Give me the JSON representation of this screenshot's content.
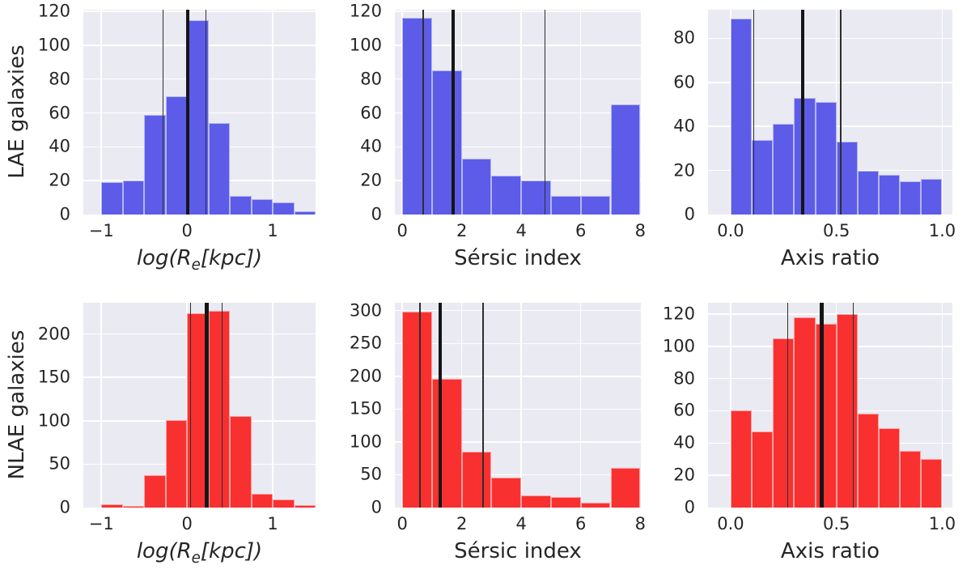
{
  "figure": {
    "background": "#ffffff"
  },
  "style": {
    "plot_bg": "#EAEAF2",
    "grid_color": "#FFFFFF",
    "text_color": "#262626",
    "thin_line_color": "#2e2e2e",
    "thick_line_color": "#151515",
    "bar_edge": "rgba(255,255,255,0.55)",
    "lae_color": "#5C5CE8",
    "nlae_color": "#F93030"
  },
  "chart_data": [
    {
      "type": "bar",
      "series": "LAE galaxies",
      "row_label": "LAE galaxies",
      "xlabel_text": "log(Re[kpc])",
      "xlabel_parts": [
        {
          "text": "log(R",
          "italic": true
        },
        {
          "text": "e",
          "italic": true,
          "sub": true
        },
        {
          "text": "[kpc])",
          "italic": true
        }
      ],
      "color": "#5C5CE8",
      "bin_start": -1,
      "bin_width": 0.25,
      "values": [
        19,
        20,
        59,
        70,
        115,
        54,
        11,
        9,
        7,
        2
      ],
      "xlim": [
        -1.21,
        1.5
      ],
      "ylim": [
        0,
        121
      ],
      "xticks": [
        {
          "v": -1,
          "label": "−1"
        },
        {
          "v": 0,
          "label": "0"
        },
        {
          "v": 1,
          "label": "1"
        }
      ],
      "yticks": [
        {
          "v": 0,
          "label": "0"
        },
        {
          "v": 20,
          "label": "20"
        },
        {
          "v": 40,
          "label": "40"
        },
        {
          "v": 60,
          "label": "60"
        },
        {
          "v": 80,
          "label": "80"
        },
        {
          "v": 100,
          "label": "100"
        },
        {
          "v": 120,
          "label": "120"
        }
      ],
      "vlines_thin": [
        -0.28,
        0.22
      ],
      "vline_thick": 0.01,
      "grid": true
    },
    {
      "type": "bar",
      "series": "LAE galaxies",
      "row_label": null,
      "xlabel_text": "Sérsic index",
      "xlabel_parts": [
        {
          "text": "Sérsic index",
          "italic": false
        }
      ],
      "color": "#5C5CE8",
      "bin_start": 0,
      "bin_width": 1,
      "values": [
        116,
        85,
        33,
        23,
        20,
        11,
        11,
        65
      ],
      "xlim": [
        -0.25,
        8.02
      ],
      "ylim": [
        0,
        121
      ],
      "xticks": [
        {
          "v": 0,
          "label": "0"
        },
        {
          "v": 2,
          "label": "2"
        },
        {
          "v": 4,
          "label": "4"
        },
        {
          "v": 6,
          "label": "6"
        },
        {
          "v": 8,
          "label": "8"
        }
      ],
      "yticks": [
        {
          "v": 0,
          "label": "0"
        },
        {
          "v": 20,
          "label": "20"
        },
        {
          "v": 40,
          "label": "40"
        },
        {
          "v": 60,
          "label": "60"
        },
        {
          "v": 80,
          "label": "80"
        },
        {
          "v": 100,
          "label": "100"
        },
        {
          "v": 120,
          "label": "120"
        }
      ],
      "vlines_thin": [
        0.7,
        4.79
      ],
      "vline_thick": 1.71,
      "grid": true
    },
    {
      "type": "bar",
      "series": "LAE galaxies",
      "row_label": null,
      "xlabel_text": "Axis ratio",
      "xlabel_parts": [
        {
          "text": "Axis ratio",
          "italic": false
        }
      ],
      "color": "#5C5CE8",
      "bin_start": 0,
      "bin_width": 0.1,
      "values": [
        89,
        34,
        41,
        53,
        51,
        33,
        20,
        18,
        15,
        16
      ],
      "xlim": [
        -0.107,
        1.048
      ],
      "ylim": [
        0,
        93
      ],
      "xticks": [
        {
          "v": 0,
          "label": "0.0"
        },
        {
          "v": 0.5,
          "label": "0.5"
        },
        {
          "v": 1,
          "label": "1.0"
        }
      ],
      "yticks": [
        {
          "v": 0,
          "label": "0"
        },
        {
          "v": 20,
          "label": "20"
        },
        {
          "v": 40,
          "label": "40"
        },
        {
          "v": 60,
          "label": "60"
        },
        {
          "v": 80,
          "label": "80"
        }
      ],
      "vlines_thin": [
        0.11,
        0.52
      ],
      "vline_thick": 0.34,
      "grid": true
    },
    {
      "type": "bar",
      "series": "NLAE galaxies",
      "row_label": "NLAE galaxies",
      "xlabel_text": "log(Re[kpc])",
      "xlabel_parts": [
        {
          "text": "log(R",
          "italic": true
        },
        {
          "text": "e",
          "italic": true,
          "sub": true
        },
        {
          "text": "[kpc])",
          "italic": true
        }
      ],
      "color": "#F93030",
      "bin_start": -1,
      "bin_width": 0.25,
      "values": [
        4,
        2,
        37,
        101,
        224,
        227,
        105,
        16,
        9,
        3
      ],
      "xlim": [
        -1.21,
        1.5
      ],
      "ylim": [
        0,
        236
      ],
      "xticks": [
        {
          "v": -1,
          "label": "−1"
        },
        {
          "v": 0,
          "label": "0"
        },
        {
          "v": 1,
          "label": "1"
        }
      ],
      "yticks": [
        {
          "v": 0,
          "label": "0"
        },
        {
          "v": 50,
          "label": "50"
        },
        {
          "v": 100,
          "label": "100"
        },
        {
          "v": 150,
          "label": "150"
        },
        {
          "v": 200,
          "label": "200"
        }
      ],
      "vlines_thin": [
        0.04,
        0.41
      ],
      "vline_thick": 0.23,
      "grid": true
    },
    {
      "type": "bar",
      "series": "NLAE galaxies",
      "row_label": null,
      "xlabel_text": "Sérsic index",
      "xlabel_parts": [
        {
          "text": "Sérsic index",
          "italic": false
        }
      ],
      "color": "#F93030",
      "bin_start": 0,
      "bin_width": 1,
      "values": [
        298,
        196,
        85,
        46,
        19,
        16,
        8,
        61
      ],
      "xlim": [
        -0.25,
        8.02
      ],
      "ylim": [
        0,
        312
      ],
      "xticks": [
        {
          "v": 0,
          "label": "0"
        },
        {
          "v": 2,
          "label": "2"
        },
        {
          "v": 4,
          "label": "4"
        },
        {
          "v": 6,
          "label": "6"
        },
        {
          "v": 8,
          "label": "8"
        }
      ],
      "yticks": [
        {
          "v": 0,
          "label": "0"
        },
        {
          "v": 50,
          "label": "50"
        },
        {
          "v": 100,
          "label": "100"
        },
        {
          "v": 150,
          "label": "150"
        },
        {
          "v": 200,
          "label": "200"
        },
        {
          "v": 250,
          "label": "250"
        },
        {
          "v": 300,
          "label": "300"
        }
      ],
      "vlines_thin": [
        0.6,
        2.72
      ],
      "vline_thick": 1.27,
      "grid": true
    },
    {
      "type": "bar",
      "series": "NLAE galaxies",
      "row_label": null,
      "xlabel_text": "Axis ratio",
      "xlabel_parts": [
        {
          "text": "Axis ratio",
          "italic": false
        }
      ],
      "color": "#F93030",
      "bin_start": 0,
      "bin_width": 0.1,
      "values": [
        60,
        47,
        105,
        118,
        114,
        120,
        58,
        49,
        35,
        30
      ],
      "xlim": [
        -0.107,
        1.048
      ],
      "ylim": [
        0,
        127
      ],
      "xticks": [
        {
          "v": 0,
          "label": "0.0"
        },
        {
          "v": 0.5,
          "label": "0.5"
        },
        {
          "v": 1,
          "label": "1.0"
        }
      ],
      "yticks": [
        {
          "v": 0,
          "label": "0"
        },
        {
          "v": 20,
          "label": "20"
        },
        {
          "v": 40,
          "label": "40"
        },
        {
          "v": 60,
          "label": "60"
        },
        {
          "v": 80,
          "label": "80"
        },
        {
          "v": 100,
          "label": "100"
        },
        {
          "v": 120,
          "label": "120"
        }
      ],
      "vlines_thin": [
        0.27,
        0.58
      ],
      "vline_thick": 0.43,
      "grid": true
    }
  ]
}
